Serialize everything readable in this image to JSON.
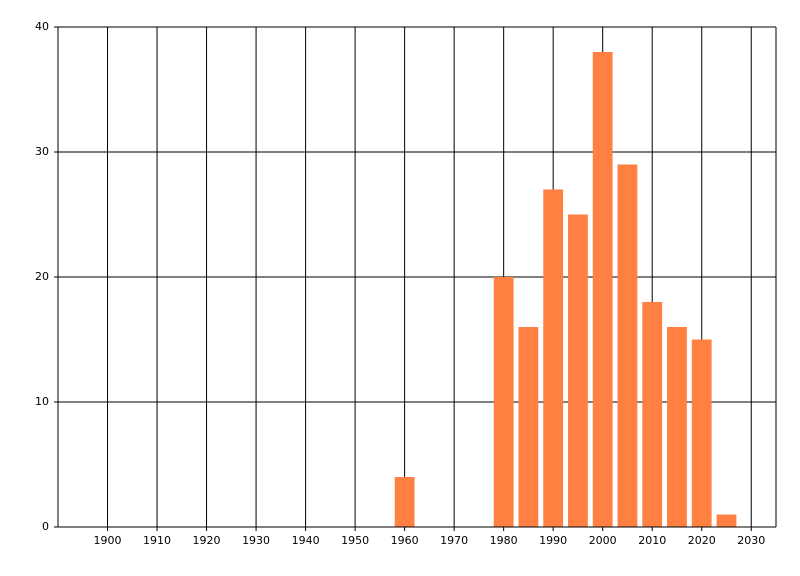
{
  "chart_data": {
    "type": "bar",
    "x": [
      1960,
      1980,
      1985,
      1990,
      1995,
      2000,
      2005,
      2010,
      2015,
      2020,
      2025
    ],
    "values": [
      4,
      20,
      16,
      27,
      25,
      38,
      29,
      18,
      16,
      15,
      1
    ],
    "color": "#ff8040",
    "xlim": [
      1890,
      2035
    ],
    "xticks": [
      1900,
      1910,
      1920,
      1930,
      1940,
      1950,
      1960,
      1970,
      1980,
      1990,
      2000,
      2010,
      2020,
      2030
    ],
    "ylim": [
      0,
      40
    ],
    "yticks": [
      0,
      10,
      20,
      30,
      40
    ],
    "grid": true
  }
}
